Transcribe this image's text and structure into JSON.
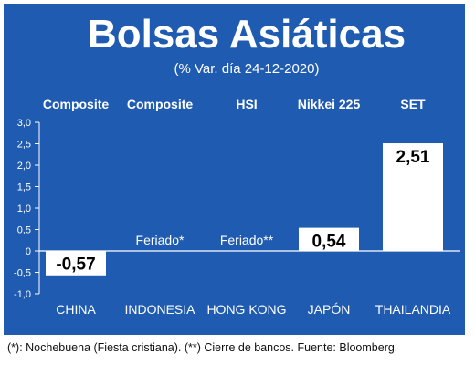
{
  "colors": {
    "panel": "#1f5bb0",
    "panel_border": "#1a4f9c",
    "text_light": "#ffffff",
    "bar": "#ffffff",
    "bar_text": "#000000",
    "zero_line": "#ffffff",
    "grid": "#ffffff"
  },
  "chart_data": {
    "type": "bar",
    "title": "Bolsas Asiáticas",
    "subtitle": "(% Var. día 24-12-2020)",
    "categories": [
      "CHINA",
      "INDONESIA",
      "HONG KONG",
      "JAPÓN",
      "THAILANDIA"
    ],
    "index_names": [
      "Composite",
      "Composite",
      "HSI",
      "Nikkei 225",
      "SET"
    ],
    "values": [
      -0.57,
      null,
      null,
      0.54,
      2.51
    ],
    "data_labels": [
      "-0,57",
      "Feriado*",
      "Feriado**",
      "0,54",
      "2,51"
    ],
    "y_ticks": [
      "3,0",
      "2,5",
      "2,0",
      "1,5",
      "1,0",
      "0,5",
      "0",
      "-0,5",
      "-1,0"
    ],
    "ylim": [
      -1.0,
      3.0
    ],
    "grid": false,
    "footnote": "(*): Nochebuena (Fiesta cristiana). (**) Cierre de bancos. Fuente: Bloomberg."
  }
}
